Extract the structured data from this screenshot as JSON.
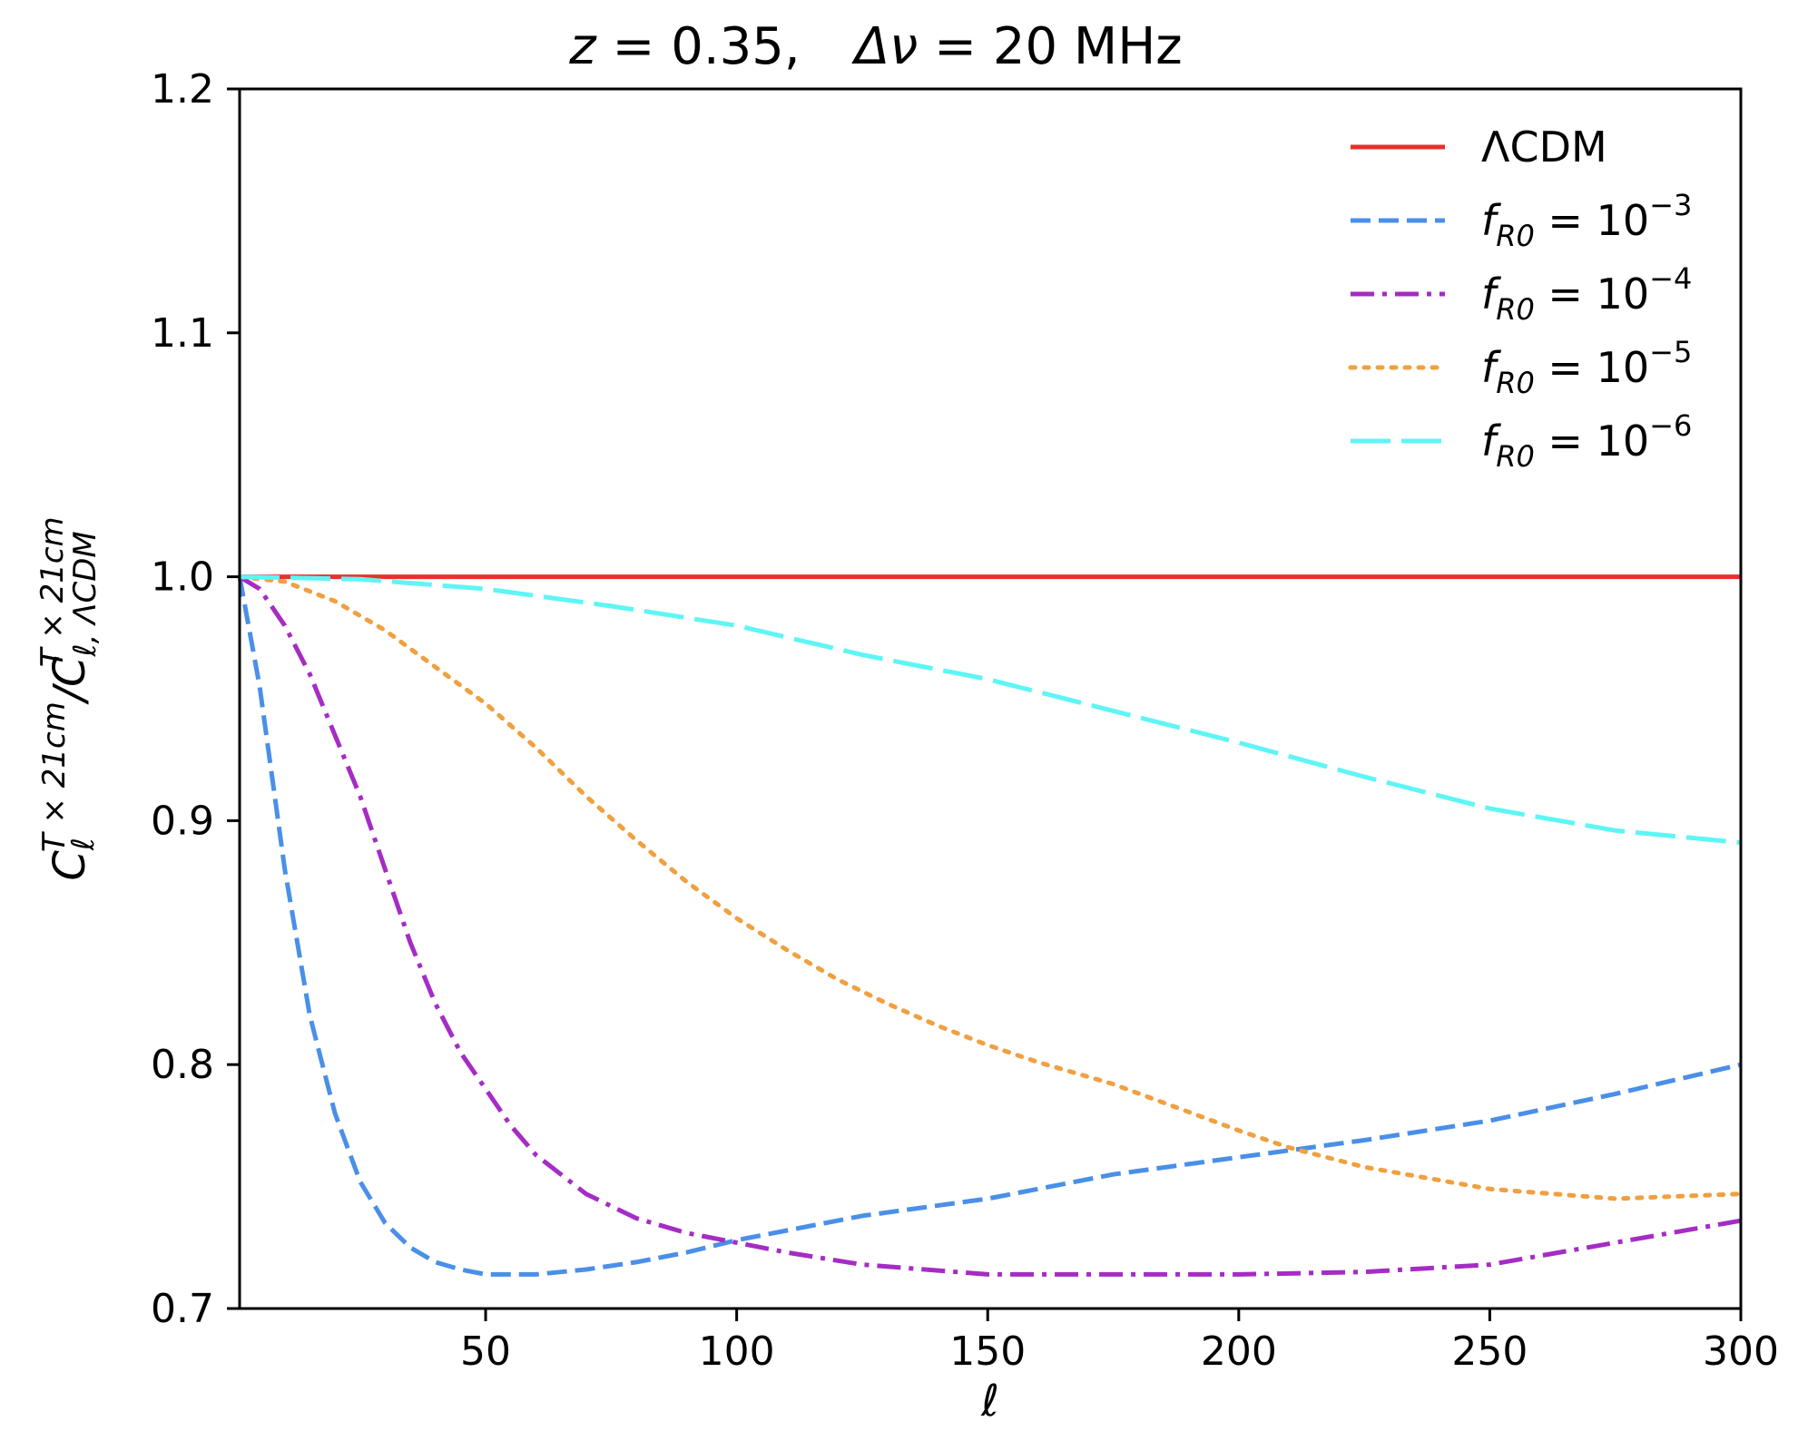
{
  "chart_data": {
    "type": "line",
    "title": {
      "z_var": "z",
      "z_eq": " = 0.35,",
      "dnu_var": "Δν",
      "dnu_eq": " = 20 MHz"
    },
    "xlabel": "ℓ",
    "ylabel": {
      "c": "C",
      "sub1": "ℓ",
      "sup1": "T × 21cm",
      "slash": "/C",
      "sub2": "ℓ, ΛCDM",
      "sup2": "T × 21cm"
    },
    "xlim": [
      1,
      300
    ],
    "ylim": [
      0.7,
      1.2
    ],
    "xticks": [
      50,
      100,
      150,
      200,
      250,
      300
    ],
    "xtick_labels": [
      "50",
      "100",
      "150",
      "200",
      "250",
      "300"
    ],
    "yticks": [
      0.7,
      0.8,
      0.9,
      1.0,
      1.1,
      1.2
    ],
    "ytick_labels": [
      "0.7",
      "0.8",
      "0.9",
      "1.0",
      "1.1",
      "1.2"
    ],
    "legend_position": "top-right",
    "series": [
      {
        "name": "ΛCDM",
        "legend": {
          "plain": "ΛCDM"
        },
        "color": "#e8302a",
        "style": "solid",
        "points": [
          [
            1,
            1.0
          ],
          [
            300,
            1.0
          ]
        ]
      },
      {
        "name": "f_R0 = 10^-3",
        "legend": {
          "f": "f",
          "sub": "R0",
          "eq": " = 10",
          "sup": "−3"
        },
        "color": "#4a8fe8",
        "style": "dashed",
        "points": [
          [
            1,
            1.0
          ],
          [
            5,
            0.955
          ],
          [
            10,
            0.88
          ],
          [
            15,
            0.82
          ],
          [
            20,
            0.78
          ],
          [
            25,
            0.752
          ],
          [
            30,
            0.735
          ],
          [
            35,
            0.725
          ],
          [
            40,
            0.719
          ],
          [
            45,
            0.716
          ],
          [
            50,
            0.714
          ],
          [
            60,
            0.714
          ],
          [
            70,
            0.716
          ],
          [
            80,
            0.719
          ],
          [
            90,
            0.723
          ],
          [
            100,
            0.728
          ],
          [
            110,
            0.732
          ],
          [
            125,
            0.738
          ],
          [
            150,
            0.745
          ],
          [
            175,
            0.755
          ],
          [
            200,
            0.762
          ],
          [
            225,
            0.769
          ],
          [
            250,
            0.777
          ],
          [
            275,
            0.788
          ],
          [
            300,
            0.8
          ]
        ]
      },
      {
        "name": "f_R0 = 10^-4",
        "legend": {
          "f": "f",
          "sub": "R0",
          "eq": " = 10",
          "sup": "−4"
        },
        "color": "#a52cc4",
        "style": "dashdot",
        "points": [
          [
            1,
            1.0
          ],
          [
            5,
            0.995
          ],
          [
            10,
            0.98
          ],
          [
            15,
            0.96
          ],
          [
            20,
            0.935
          ],
          [
            25,
            0.91
          ],
          [
            30,
            0.88
          ],
          [
            35,
            0.85
          ],
          [
            40,
            0.825
          ],
          [
            45,
            0.805
          ],
          [
            50,
            0.79
          ],
          [
            55,
            0.775
          ],
          [
            60,
            0.763
          ],
          [
            70,
            0.747
          ],
          [
            80,
            0.737
          ],
          [
            90,
            0.731
          ],
          [
            100,
            0.727
          ],
          [
            110,
            0.723
          ],
          [
            125,
            0.718
          ],
          [
            150,
            0.714
          ],
          [
            175,
            0.714
          ],
          [
            200,
            0.714
          ],
          [
            225,
            0.715
          ],
          [
            250,
            0.718
          ],
          [
            275,
            0.727
          ],
          [
            300,
            0.736
          ]
        ]
      },
      {
        "name": "f_R0 = 10^-5",
        "legend": {
          "f": "f",
          "sub": "R0",
          "eq": " = 10",
          "sup": "−5"
        },
        "color": "#f0a040",
        "style": "dotted",
        "points": [
          [
            1,
            1.0
          ],
          [
            10,
            0.998
          ],
          [
            20,
            0.99
          ],
          [
            30,
            0.978
          ],
          [
            40,
            0.963
          ],
          [
            50,
            0.948
          ],
          [
            60,
            0.93
          ],
          [
            70,
            0.91
          ],
          [
            80,
            0.892
          ],
          [
            90,
            0.875
          ],
          [
            100,
            0.86
          ],
          [
            110,
            0.847
          ],
          [
            120,
            0.835
          ],
          [
            130,
            0.825
          ],
          [
            140,
            0.816
          ],
          [
            150,
            0.808
          ],
          [
            160,
            0.801
          ],
          [
            175,
            0.792
          ],
          [
            200,
            0.773
          ],
          [
            210,
            0.766
          ],
          [
            225,
            0.758
          ],
          [
            250,
            0.749
          ],
          [
            275,
            0.745
          ],
          [
            300,
            0.747
          ]
        ]
      },
      {
        "name": "f_R0 = 10^-6",
        "legend": {
          "f": "f",
          "sub": "R0",
          "eq": " = 10",
          "sup": "−6"
        },
        "color": "#5ef5f5",
        "style": "longdash",
        "points": [
          [
            1,
            1.0
          ],
          [
            25,
            0.999
          ],
          [
            50,
            0.995
          ],
          [
            75,
            0.988
          ],
          [
            100,
            0.98
          ],
          [
            125,
            0.968
          ],
          [
            150,
            0.958
          ],
          [
            175,
            0.945
          ],
          [
            200,
            0.932
          ],
          [
            225,
            0.918
          ],
          [
            250,
            0.905
          ],
          [
            275,
            0.896
          ],
          [
            300,
            0.891
          ]
        ]
      }
    ]
  }
}
